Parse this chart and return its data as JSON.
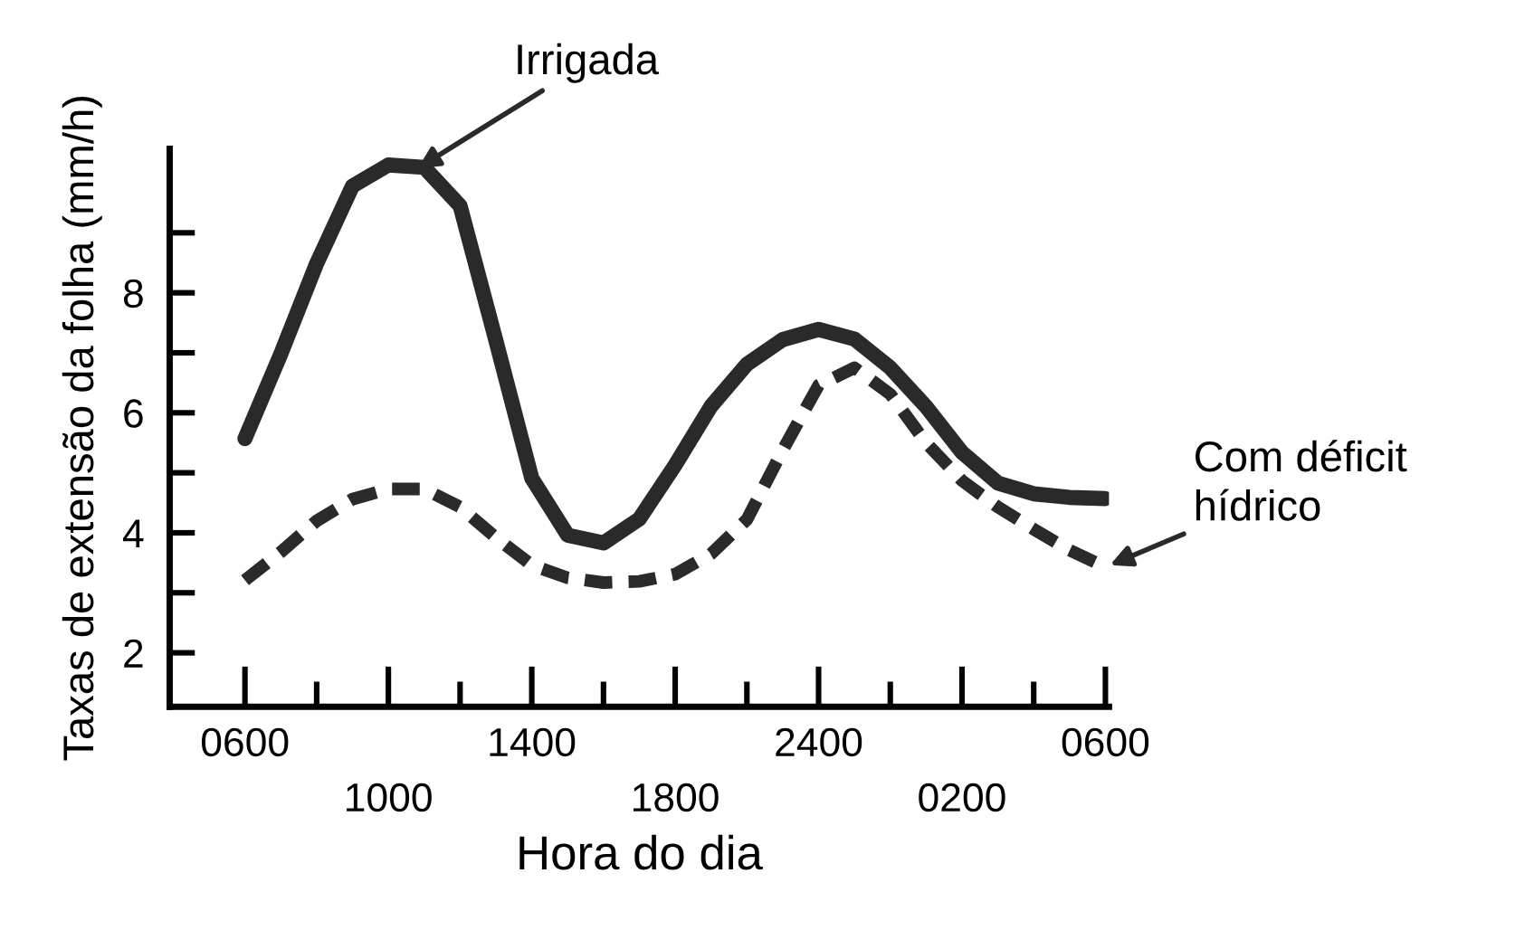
{
  "chart_data": {
    "type": "line",
    "xlabel": "Hora do dia",
    "ylabel": "Taxas de extensão da folha (mm/h)",
    "categories": [
      "0600",
      null,
      null,
      null,
      "1000",
      null,
      null,
      null,
      "1400",
      null,
      null,
      null,
      "1800",
      null,
      null,
      null,
      "2400",
      null,
      null,
      null,
      "0200",
      null,
      null,
      null,
      "0600"
    ],
    "ylim": [
      1.1,
      10.4
    ],
    "yticks": [
      2,
      4,
      6,
      8
    ],
    "grid": false,
    "legend": false,
    "marker": "none",
    "series": [
      {
        "name": "Irrigada",
        "color": "#2a2a2a",
        "line_style": "solid",
        "values": [
          5.57,
          6.98,
          8.49,
          9.78,
          10.13,
          10.09,
          9.45,
          7.2,
          4.91,
          3.96,
          3.83,
          4.23,
          5.13,
          6.11,
          6.81,
          7.22,
          7.39,
          7.23,
          6.75,
          6.1,
          5.34,
          4.83,
          4.65,
          4.59,
          4.57
        ]
      },
      {
        "name": "Com déficit\nhídrico",
        "color": "#2a2a2a",
        "line_style": "dashed",
        "values": [
          3.21,
          3.68,
          4.2,
          4.56,
          4.73,
          4.73,
          4.43,
          3.92,
          3.46,
          3.25,
          3.17,
          3.19,
          3.31,
          3.65,
          4.22,
          5.38,
          6.46,
          6.75,
          6.31,
          5.5,
          4.87,
          4.43,
          4.06,
          3.71,
          3.43
        ]
      }
    ]
  }
}
